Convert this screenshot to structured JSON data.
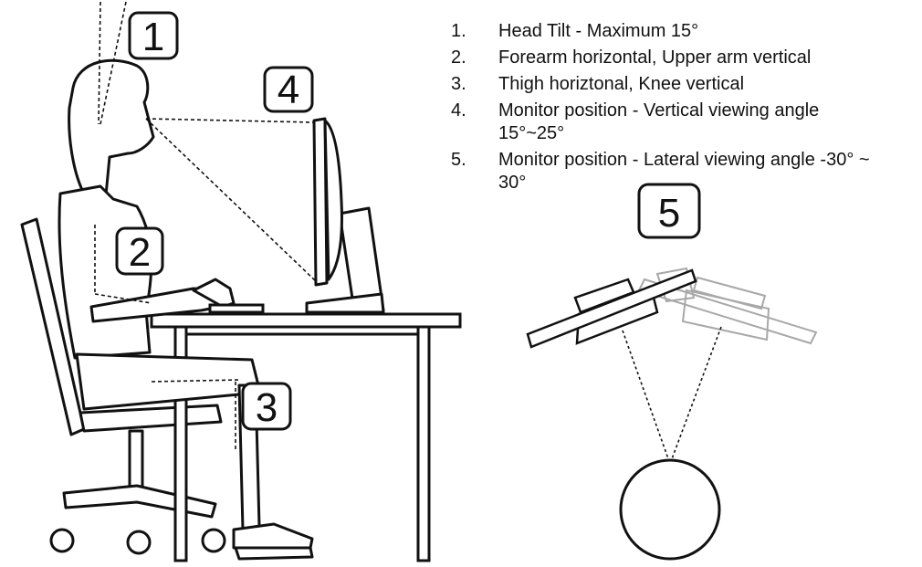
{
  "legend": [
    {
      "num": "1.",
      "text": "Head Tilt - Maximum 15°"
    },
    {
      "num": "2.",
      "text": "Forearm horizontal, Upper arm vertical"
    },
    {
      "num": "3.",
      "text": "Thigh horiztonal, Knee vertical"
    },
    {
      "num": "4.",
      "text": "Monitor position - Vertical viewing angle 15°~25°"
    },
    {
      "num": "5.",
      "text": "Monitor position - Lateral viewing angle -30° ~ 30°"
    }
  ],
  "badges": {
    "b1": "1",
    "b2": "2",
    "b3": "3",
    "b4": "4",
    "b5": "5"
  },
  "colors": {
    "line": "#111111",
    "ghost": "#a8a8a8"
  }
}
